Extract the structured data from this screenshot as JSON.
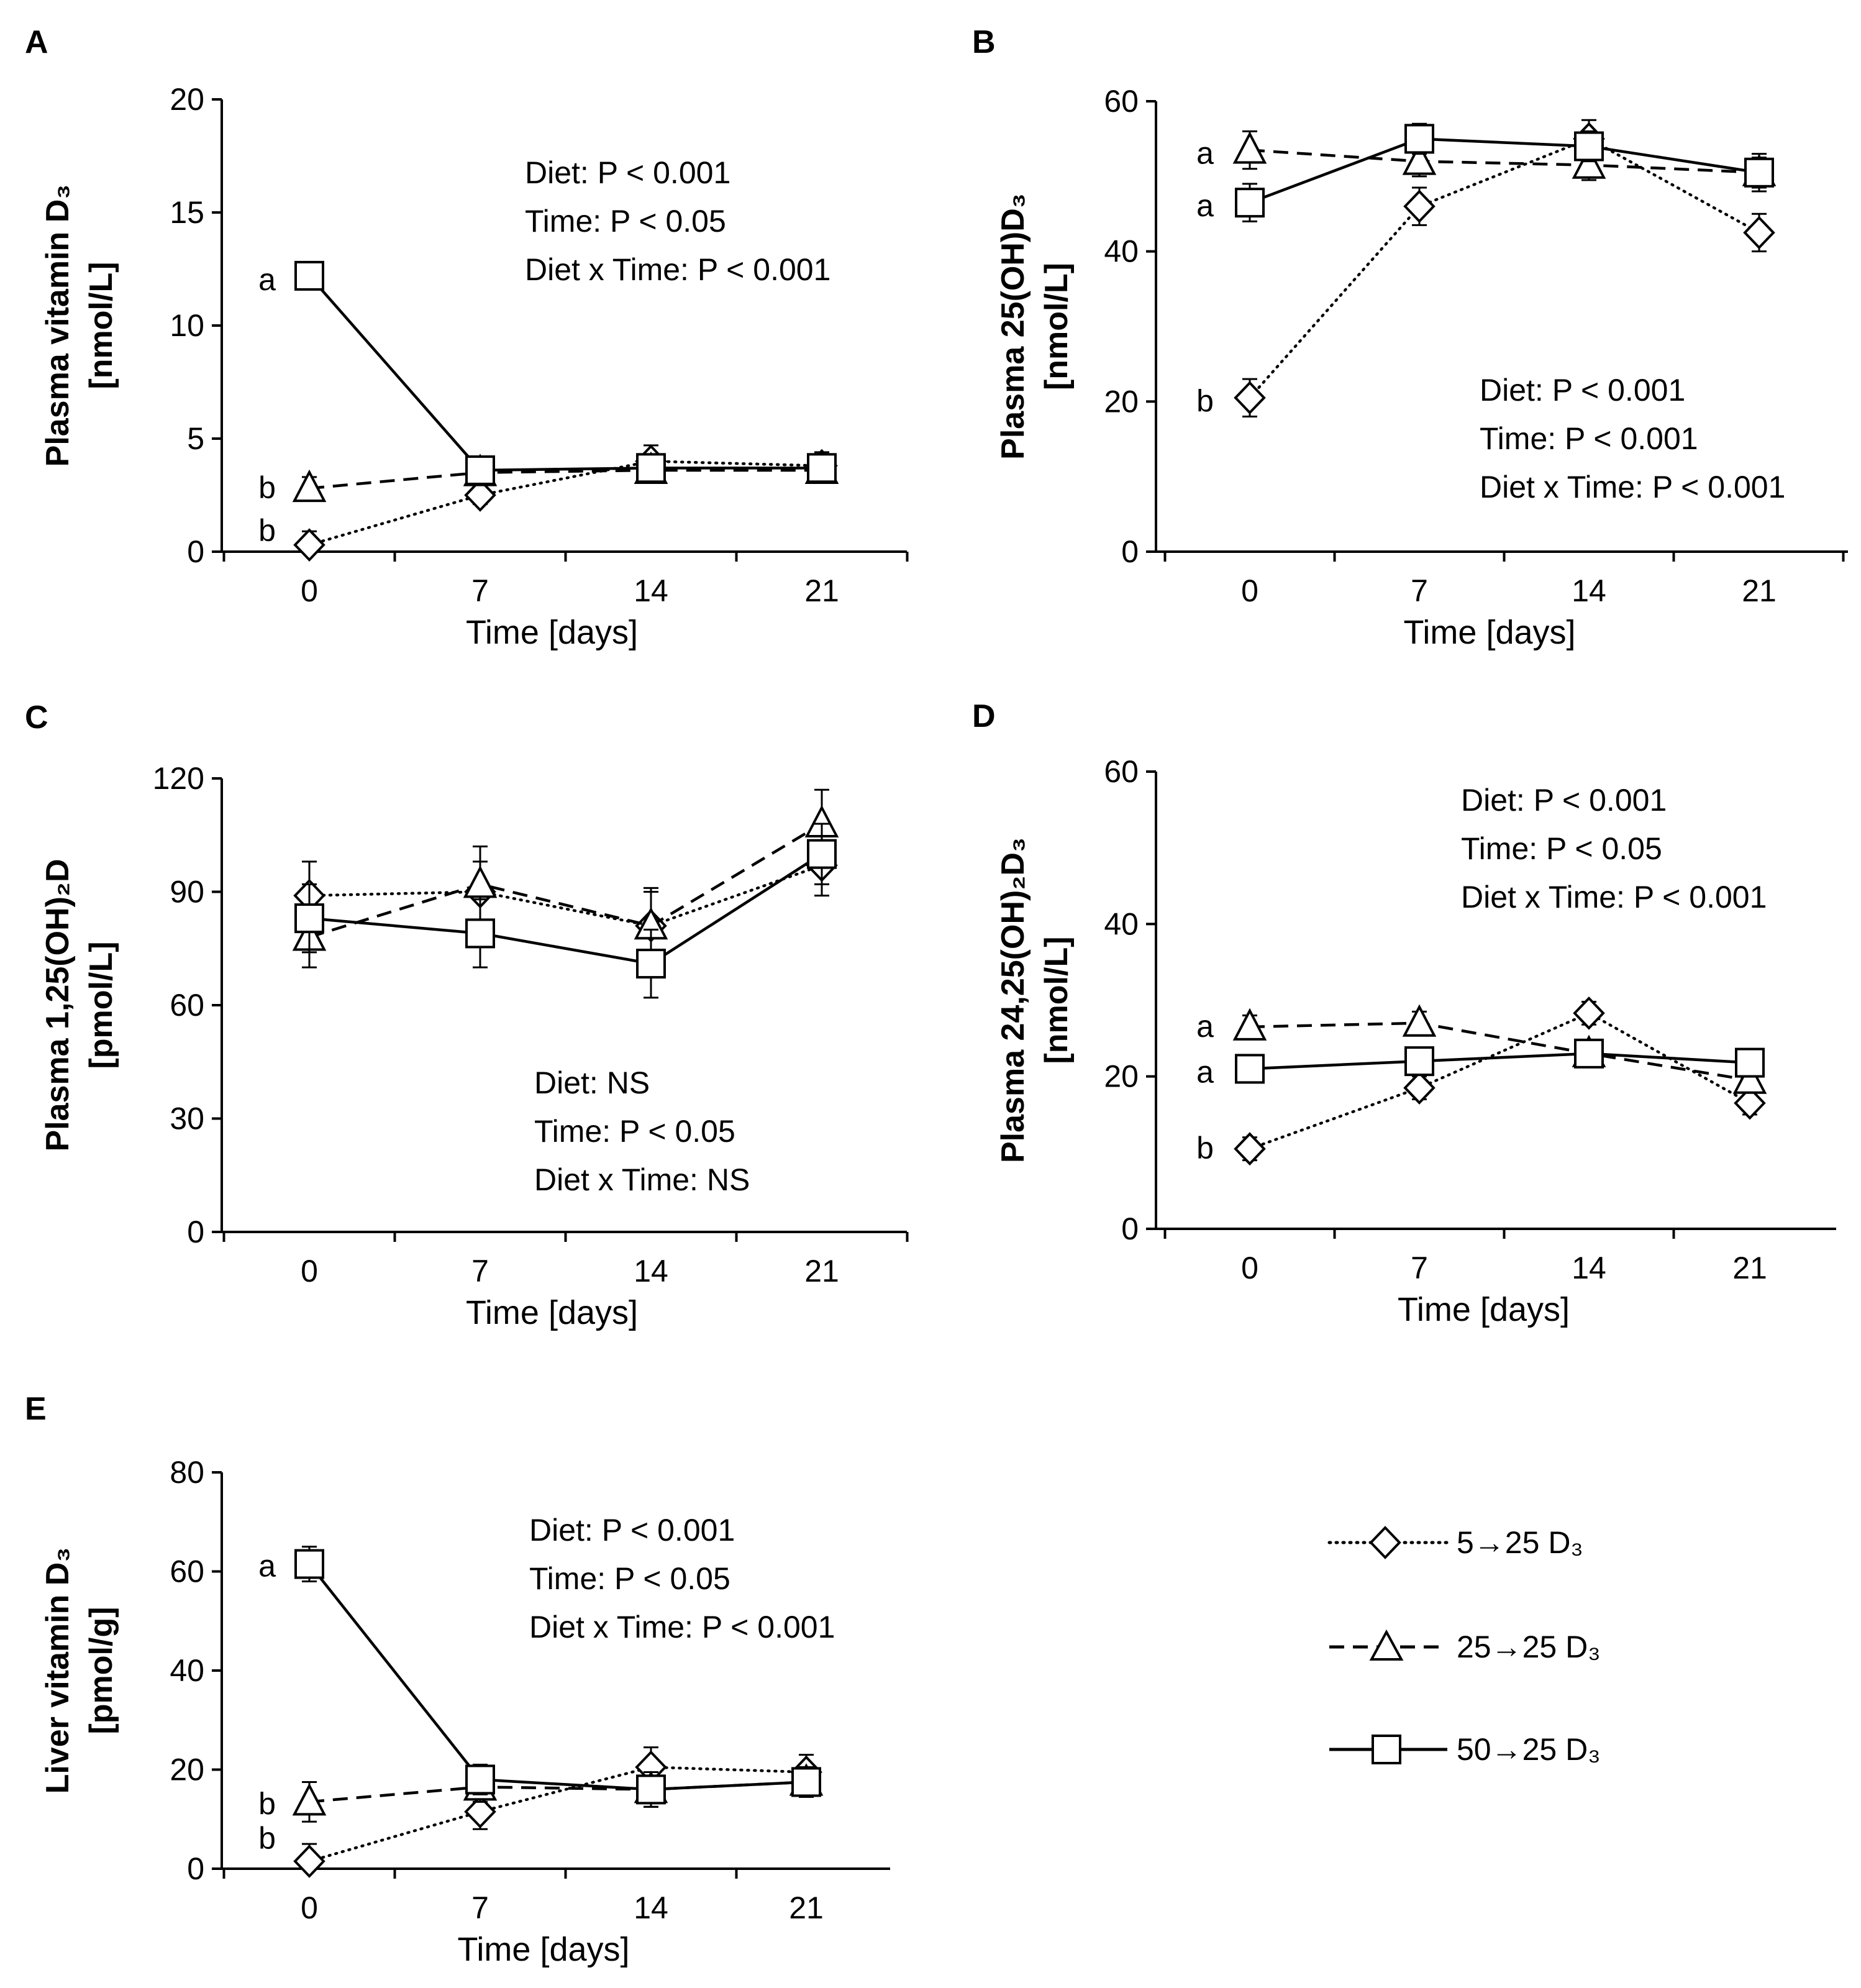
{
  "figure": {
    "legend_entries_ref": "legend"
  },
  "legend": {
    "entries": [
      {
        "label": "5→25 D₃",
        "marker": "diamond",
        "dash": "dotted"
      },
      {
        "label": "25→25 D₃",
        "marker": "triangle",
        "dash": "dashed"
      },
      {
        "label": "50→25 D₃",
        "marker": "square",
        "dash": "solid"
      }
    ]
  },
  "chart_data": [
    {
      "id": "A",
      "type": "line",
      "panel_label": "A",
      "ylabel_lines": [
        "Plasma vitamin D₃",
        "[nmol/L]"
      ],
      "xlabel": "Time [days]",
      "x": [
        0,
        7,
        14,
        21
      ],
      "xticks": [
        "0",
        "7",
        "14",
        "21"
      ],
      "ylim": [
        0,
        20
      ],
      "yticks": [
        0,
        5,
        10,
        15,
        20
      ],
      "series": [
        {
          "name": "5→25 D₃",
          "marker": "diamond",
          "dash": "dotted",
          "values": [
            0.3,
            2.5,
            4.0,
            3.8
          ],
          "errors": [
            0.6,
            0.4,
            0.7,
            0.6
          ]
        },
        {
          "name": "25→25 D₃",
          "marker": "triangle",
          "dash": "dashed",
          "values": [
            2.8,
            3.5,
            3.6,
            3.6
          ],
          "errors": [
            0.5,
            0.4,
            0.5,
            0.5
          ]
        },
        {
          "name": "50→25 D₃",
          "marker": "square",
          "dash": "solid",
          "values": [
            12.2,
            3.6,
            3.7,
            3.7
          ],
          "errors": [
            0.3,
            0.4,
            0.6,
            0.5
          ]
        }
      ],
      "letters": [
        {
          "text": "a",
          "y": 12.0
        },
        {
          "text": "b",
          "y": 2.8
        },
        {
          "text": "b",
          "y": 0.9
        }
      ],
      "stats": [
        "Diet: P < 0.001",
        "Time: P < 0.05",
        "Diet x Time: P < 0.001"
      ]
    },
    {
      "id": "B",
      "type": "line",
      "panel_label": "B",
      "ylabel_lines": [
        "Plasma 25(OH)D₃",
        "[nmol/L]"
      ],
      "xlabel": "Time [days]",
      "x": [
        0,
        7,
        14,
        21
      ],
      "xticks": [
        "0",
        "7",
        "14",
        "21"
      ],
      "ylim": [
        0,
        60
      ],
      "yticks": [
        0,
        20,
        40,
        60
      ],
      "series": [
        {
          "name": "5→25 D₃",
          "marker": "diamond",
          "dash": "dotted",
          "values": [
            20.5,
            46.0,
            55.0,
            42.5
          ],
          "errors": [
            2.5,
            2.5,
            2.5,
            2.5
          ]
        },
        {
          "name": "25→25 D₃",
          "marker": "triangle",
          "dash": "dashed",
          "values": [
            53.5,
            52.0,
            51.5,
            50.5
          ],
          "errors": [
            2.5,
            2.0,
            2.0,
            2.0
          ]
        },
        {
          "name": "50→25 D₃",
          "marker": "square",
          "dash": "solid",
          "values": [
            46.5,
            55.0,
            54.0,
            50.5
          ],
          "errors": [
            2.5,
            2.0,
            2.0,
            2.5
          ]
        }
      ],
      "letters": [
        {
          "text": "a",
          "y": 53.0
        },
        {
          "text": "a",
          "y": 46.0
        },
        {
          "text": "b",
          "y": 20.0
        }
      ],
      "stats": [
        "Diet: P < 0.001",
        "Time: P < 0.001",
        "Diet x Time: P < 0.001"
      ]
    },
    {
      "id": "C",
      "type": "line",
      "panel_label": "C",
      "ylabel_lines": [
        "Plasma 1,25(OH)₂D",
        "[pmol/L]"
      ],
      "xlabel": "Time [days]",
      "x": [
        0,
        7,
        14,
        21
      ],
      "xticks": [
        "0",
        "7",
        "14",
        "21"
      ],
      "ylim": [
        0,
        120
      ],
      "yticks": [
        0,
        30,
        60,
        90,
        120
      ],
      "series": [
        {
          "name": "5→25 D₃",
          "marker": "diamond",
          "dash": "dotted",
          "values": [
            89,
            90,
            81,
            97
          ],
          "errors": [
            9,
            8,
            9,
            8
          ]
        },
        {
          "name": "25→25 D₃",
          "marker": "triangle",
          "dash": "dashed",
          "values": [
            78,
            92,
            81,
            108
          ],
          "errors": [
            8,
            10,
            10,
            9
          ]
        },
        {
          "name": "50→25 D₃",
          "marker": "square",
          "dash": "solid",
          "values": [
            83,
            79,
            71,
            100
          ],
          "errors": [
            9,
            9,
            9,
            8
          ]
        }
      ],
      "letters": [],
      "stats": [
        "Diet: NS",
        "Time: P < 0.05",
        "Diet x Time: NS"
      ]
    },
    {
      "id": "D",
      "type": "line",
      "panel_label": "D",
      "ylabel_lines": [
        "Plasma 24,25(OH)₂D₃",
        "[nmol/L]"
      ],
      "xlabel": "Time [days]",
      "x": [
        0,
        7,
        14,
        21
      ],
      "xticks": [
        "0",
        "7",
        "14",
        "21"
      ],
      "ylim": [
        0,
        60
      ],
      "yticks": [
        0,
        20,
        40,
        60
      ],
      "series": [
        {
          "name": "5→25 D₃",
          "marker": "diamond",
          "dash": "dotted",
          "values": [
            10.5,
            18.5,
            28.3,
            16.5
          ],
          "errors": [
            1.5,
            1.5,
            1.5,
            1.5
          ]
        },
        {
          "name": "25→25 D₃",
          "marker": "triangle",
          "dash": "dashed",
          "values": [
            26.5,
            27.0,
            23.0,
            19.5
          ],
          "errors": [
            1.5,
            1.5,
            1.2,
            1.5
          ]
        },
        {
          "name": "50→25 D₃",
          "marker": "square",
          "dash": "solid",
          "values": [
            21.0,
            22.0,
            23.0,
            21.8
          ],
          "errors": [
            1.5,
            1.5,
            1.2,
            1.5
          ]
        }
      ],
      "letters": [
        {
          "text": "a",
          "y": 26.5
        },
        {
          "text": "a",
          "y": 20.5
        },
        {
          "text": "b",
          "y": 10.5
        }
      ],
      "stats": [
        "Diet: P < 0.001",
        "Time: P < 0.05",
        "Diet x Time: P < 0.001"
      ]
    },
    {
      "id": "E",
      "type": "line",
      "panel_label": "E",
      "ylabel_lines": [
        "Liver vitamin D₃",
        "[pmol/g]"
      ],
      "xlabel": "Time [days]",
      "x": [
        0,
        7,
        14,
        21
      ],
      "xticks": [
        "0",
        "7",
        "14",
        "21"
      ],
      "ylim": [
        0,
        80
      ],
      "yticks": [
        0,
        20,
        40,
        60,
        80
      ],
      "series": [
        {
          "name": "5→25 D₃",
          "marker": "diamond",
          "dash": "dotted",
          "values": [
            1.5,
            11.5,
            20.5,
            19.5
          ],
          "errors": [
            3.5,
            3.5,
            4.0,
            3.5
          ]
        },
        {
          "name": "25→25 D₃",
          "marker": "triangle",
          "dash": "dashed",
          "values": [
            13.5,
            16.5,
            16.0,
            17.5
          ],
          "errors": [
            4.0,
            3.0,
            3.5,
            3.0
          ]
        },
        {
          "name": "50→25 D₃",
          "marker": "square",
          "dash": "solid",
          "values": [
            61.5,
            18.0,
            16.0,
            17.5
          ],
          "errors": [
            3.5,
            3.0,
            3.5,
            3.0
          ]
        }
      ],
      "letters": [
        {
          "text": "a",
          "y": 61.0
        },
        {
          "text": "b",
          "y": 13.0
        },
        {
          "text": "b",
          "y": 6.0
        }
      ],
      "stats": [
        "Diet: P < 0.001",
        "Time: P < 0.05",
        "Diet x Time: P < 0.001"
      ]
    }
  ]
}
